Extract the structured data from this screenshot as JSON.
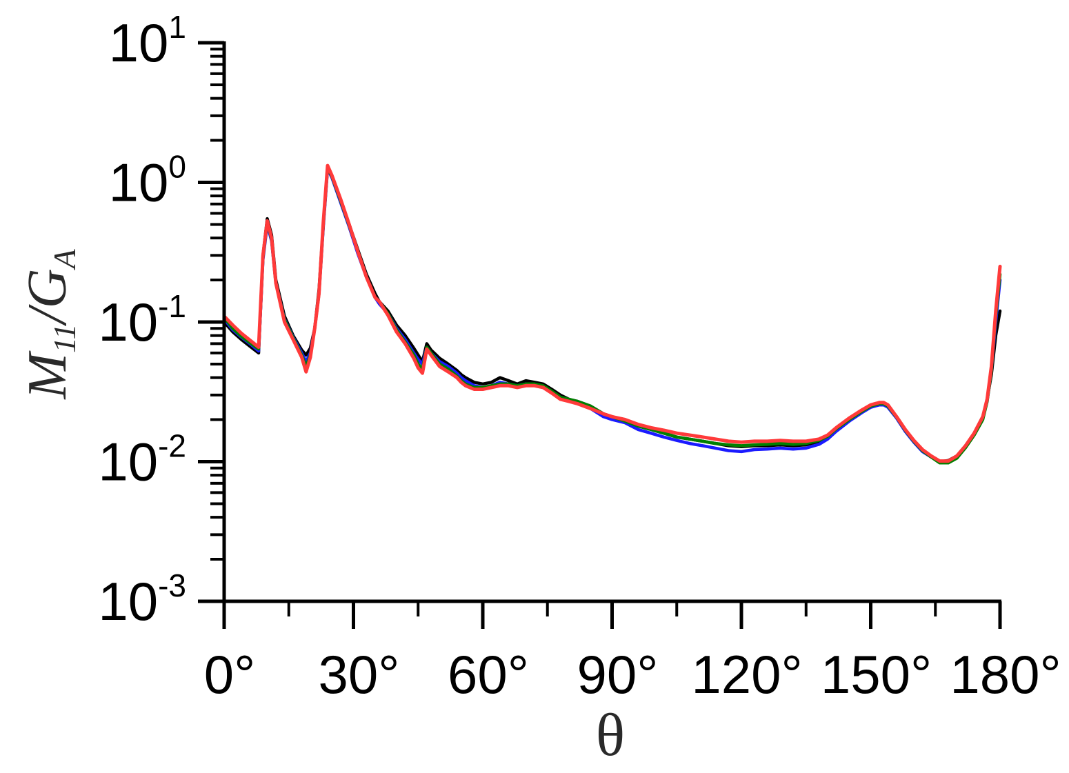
{
  "chart_data": {
    "type": "line",
    "title": "",
    "xlabel": "θ",
    "ylabel": {
      "main": "M",
      "main_sub": "11",
      "slash": "/",
      "denom": "G",
      "denom_sub": "A"
    },
    "xlim": [
      0,
      180
    ],
    "ylim": [
      0.001,
      10
    ],
    "yscale": "log",
    "grid": false,
    "legend": "none",
    "x_ticks": [
      {
        "value": 0,
        "label": "0°"
      },
      {
        "value": 30,
        "label": "30°"
      },
      {
        "value": 60,
        "label": "60°"
      },
      {
        "value": 90,
        "label": "90°"
      },
      {
        "value": 120,
        "label": "120°"
      },
      {
        "value": 150,
        "label": "150°"
      },
      {
        "value": 180,
        "label": "180°"
      }
    ],
    "y_ticks": [
      {
        "value": 10,
        "base": "10",
        "exp": "1"
      },
      {
        "value": 1,
        "base": "10",
        "exp": "0"
      },
      {
        "value": 0.1,
        "base": "10",
        "exp": "-1"
      },
      {
        "value": 0.01,
        "base": "10",
        "exp": "-2"
      },
      {
        "value": 0.001,
        "base": "10",
        "exp": "-3"
      }
    ],
    "series": [
      {
        "color": "#000000",
        "x": [
          0,
          2,
          4,
          6,
          8,
          9,
          10,
          11,
          12,
          14,
          16,
          18,
          19,
          20,
          21,
          22,
          23,
          24,
          25,
          27,
          29,
          31,
          33,
          35,
          36,
          38,
          40,
          42,
          44,
          45,
          46,
          47,
          48,
          50,
          52,
          54,
          55,
          56,
          58,
          60,
          62,
          64,
          66,
          68,
          70,
          72,
          74,
          76,
          78,
          80,
          82,
          85,
          88,
          90,
          93,
          96,
          99,
          102,
          105,
          108,
          111,
          114,
          117,
          120,
          123,
          126,
          129,
          132,
          135,
          138,
          140,
          142,
          145,
          148,
          150,
          152,
          153,
          154,
          156,
          158,
          160,
          162,
          164,
          166,
          168,
          170,
          172,
          174,
          176,
          177,
          178,
          179,
          180
        ],
        "y": [
          0.1,
          0.085,
          0.075,
          0.067,
          0.06,
          0.3,
          0.55,
          0.42,
          0.2,
          0.11,
          0.08,
          0.063,
          0.058,
          0.065,
          0.09,
          0.17,
          0.5,
          1.3,
          1.1,
          0.75,
          0.5,
          0.33,
          0.22,
          0.16,
          0.14,
          0.12,
          0.095,
          0.08,
          0.065,
          0.058,
          0.052,
          0.07,
          0.063,
          0.055,
          0.05,
          0.045,
          0.042,
          0.04,
          0.037,
          0.036,
          0.037,
          0.04,
          0.038,
          0.036,
          0.038,
          0.037,
          0.036,
          0.033,
          0.03,
          0.028,
          0.027,
          0.025,
          0.022,
          0.021,
          0.02,
          0.018,
          0.017,
          0.016,
          0.015,
          0.0145,
          0.014,
          0.0135,
          0.013,
          0.0128,
          0.013,
          0.013,
          0.0132,
          0.013,
          0.0132,
          0.014,
          0.015,
          0.017,
          0.02,
          0.023,
          0.025,
          0.026,
          0.026,
          0.025,
          0.021,
          0.017,
          0.014,
          0.012,
          0.011,
          0.01,
          0.0102,
          0.011,
          0.013,
          0.016,
          0.021,
          0.028,
          0.042,
          0.08,
          0.12
        ]
      },
      {
        "color": "#1a1aff",
        "x": [
          0,
          2,
          4,
          6,
          8,
          9,
          10,
          11,
          12,
          14,
          16,
          18,
          19,
          20,
          21,
          22,
          23,
          24,
          25,
          27,
          29,
          31,
          33,
          35,
          36,
          38,
          40,
          42,
          44,
          45,
          46,
          47,
          48,
          50,
          52,
          54,
          55,
          56,
          58,
          60,
          62,
          64,
          66,
          68,
          70,
          72,
          74,
          76,
          78,
          80,
          82,
          85,
          88,
          90,
          93,
          96,
          99,
          102,
          105,
          108,
          111,
          114,
          117,
          120,
          123,
          126,
          129,
          132,
          135,
          138,
          140,
          142,
          145,
          148,
          150,
          152,
          153,
          154,
          156,
          158,
          160,
          162,
          164,
          166,
          168,
          170,
          172,
          174,
          176,
          177,
          178,
          179,
          180
        ],
        "y": [
          0.105,
          0.088,
          0.078,
          0.07,
          0.062,
          0.28,
          0.5,
          0.38,
          0.19,
          0.105,
          0.078,
          0.06,
          0.052,
          0.06,
          0.09,
          0.16,
          0.48,
          1.25,
          1.08,
          0.72,
          0.48,
          0.31,
          0.21,
          0.15,
          0.135,
          0.115,
          0.09,
          0.075,
          0.06,
          0.054,
          0.05,
          0.066,
          0.06,
          0.052,
          0.048,
          0.043,
          0.04,
          0.038,
          0.035,
          0.034,
          0.035,
          0.037,
          0.036,
          0.035,
          0.036,
          0.035,
          0.034,
          0.031,
          0.029,
          0.027,
          0.026,
          0.024,
          0.021,
          0.02,
          0.019,
          0.017,
          0.016,
          0.015,
          0.0142,
          0.0135,
          0.013,
          0.0125,
          0.012,
          0.0118,
          0.0122,
          0.0123,
          0.0125,
          0.0123,
          0.0125,
          0.0133,
          0.0145,
          0.0165,
          0.0195,
          0.0225,
          0.0245,
          0.0255,
          0.0255,
          0.0245,
          0.0205,
          0.0165,
          0.0138,
          0.0118,
          0.0108,
          0.0099,
          0.01,
          0.0108,
          0.0128,
          0.0158,
          0.0205,
          0.027,
          0.045,
          0.1,
          0.2
        ]
      },
      {
        "color": "#008000",
        "x": [
          0,
          2,
          4,
          6,
          8,
          9,
          10,
          11,
          12,
          14,
          16,
          18,
          19,
          20,
          21,
          22,
          23,
          24,
          25,
          27,
          29,
          31,
          33,
          35,
          36,
          38,
          40,
          42,
          44,
          45,
          46,
          47,
          48,
          50,
          52,
          54,
          55,
          56,
          58,
          60,
          62,
          64,
          66,
          68,
          70,
          72,
          74,
          76,
          78,
          80,
          82,
          85,
          88,
          90,
          93,
          96,
          99,
          102,
          105,
          108,
          111,
          114,
          117,
          120,
          123,
          126,
          129,
          132,
          135,
          138,
          140,
          142,
          145,
          148,
          150,
          152,
          153,
          154,
          156,
          158,
          160,
          162,
          164,
          166,
          168,
          170,
          172,
          174,
          176,
          177,
          178,
          179,
          180
        ],
        "y": [
          0.108,
          0.09,
          0.079,
          0.071,
          0.064,
          0.29,
          0.52,
          0.39,
          0.19,
          0.104,
          0.077,
          0.058,
          0.048,
          0.058,
          0.09,
          0.16,
          0.5,
          1.28,
          1.1,
          0.74,
          0.49,
          0.32,
          0.21,
          0.15,
          0.14,
          0.115,
          0.088,
          0.072,
          0.058,
          0.05,
          0.046,
          0.066,
          0.06,
          0.05,
          0.046,
          0.041,
          0.038,
          0.036,
          0.034,
          0.034,
          0.035,
          0.036,
          0.036,
          0.035,
          0.036,
          0.036,
          0.035,
          0.032,
          0.029,
          0.028,
          0.027,
          0.025,
          0.022,
          0.021,
          0.0195,
          0.018,
          0.017,
          0.016,
          0.015,
          0.0145,
          0.014,
          0.0135,
          0.0132,
          0.013,
          0.0132,
          0.0133,
          0.0135,
          0.0133,
          0.0135,
          0.0142,
          0.0152,
          0.0172,
          0.02,
          0.023,
          0.025,
          0.026,
          0.026,
          0.025,
          0.0208,
          0.0168,
          0.014,
          0.012,
          0.0108,
          0.0098,
          0.0098,
          0.0106,
          0.0126,
          0.0155,
          0.02,
          0.027,
          0.045,
          0.11,
          0.22
        ]
      },
      {
        "color": "#ff3a3a",
        "x": [
          0,
          2,
          4,
          6,
          8,
          9,
          10,
          11,
          12,
          14,
          16,
          18,
          19,
          20,
          21,
          22,
          23,
          24,
          25,
          27,
          29,
          31,
          33,
          35,
          36,
          38,
          40,
          42,
          44,
          45,
          46,
          47,
          48,
          50,
          52,
          54,
          55,
          56,
          58,
          60,
          62,
          64,
          66,
          68,
          70,
          72,
          74,
          76,
          78,
          80,
          82,
          85,
          88,
          90,
          93,
          96,
          99,
          102,
          105,
          108,
          111,
          114,
          117,
          120,
          123,
          126,
          129,
          132,
          135,
          138,
          140,
          142,
          145,
          148,
          150,
          152,
          153,
          154,
          156,
          158,
          160,
          162,
          164,
          166,
          168,
          170,
          172,
          174,
          176,
          177,
          178,
          179,
          180
        ],
        "y": [
          0.11,
          0.095,
          0.083,
          0.074,
          0.066,
          0.3,
          0.53,
          0.4,
          0.19,
          0.1,
          0.075,
          0.056,
          0.044,
          0.056,
          0.09,
          0.16,
          0.52,
          1.32,
          1.12,
          0.76,
          0.5,
          0.32,
          0.21,
          0.15,
          0.14,
          0.112,
          0.085,
          0.07,
          0.055,
          0.047,
          0.043,
          0.064,
          0.058,
          0.048,
          0.044,
          0.04,
          0.037,
          0.035,
          0.033,
          0.033,
          0.034,
          0.035,
          0.035,
          0.034,
          0.035,
          0.035,
          0.034,
          0.031,
          0.028,
          0.027,
          0.026,
          0.024,
          0.022,
          0.021,
          0.02,
          0.0185,
          0.0175,
          0.0168,
          0.016,
          0.0155,
          0.015,
          0.0145,
          0.014,
          0.0138,
          0.014,
          0.014,
          0.0142,
          0.014,
          0.014,
          0.0145,
          0.0155,
          0.0175,
          0.0205,
          0.0235,
          0.0255,
          0.0265,
          0.0265,
          0.0255,
          0.021,
          0.017,
          0.0142,
          0.0122,
          0.011,
          0.0101,
          0.0101,
          0.011,
          0.013,
          0.016,
          0.021,
          0.028,
          0.048,
          0.12,
          0.25
        ]
      }
    ]
  }
}
